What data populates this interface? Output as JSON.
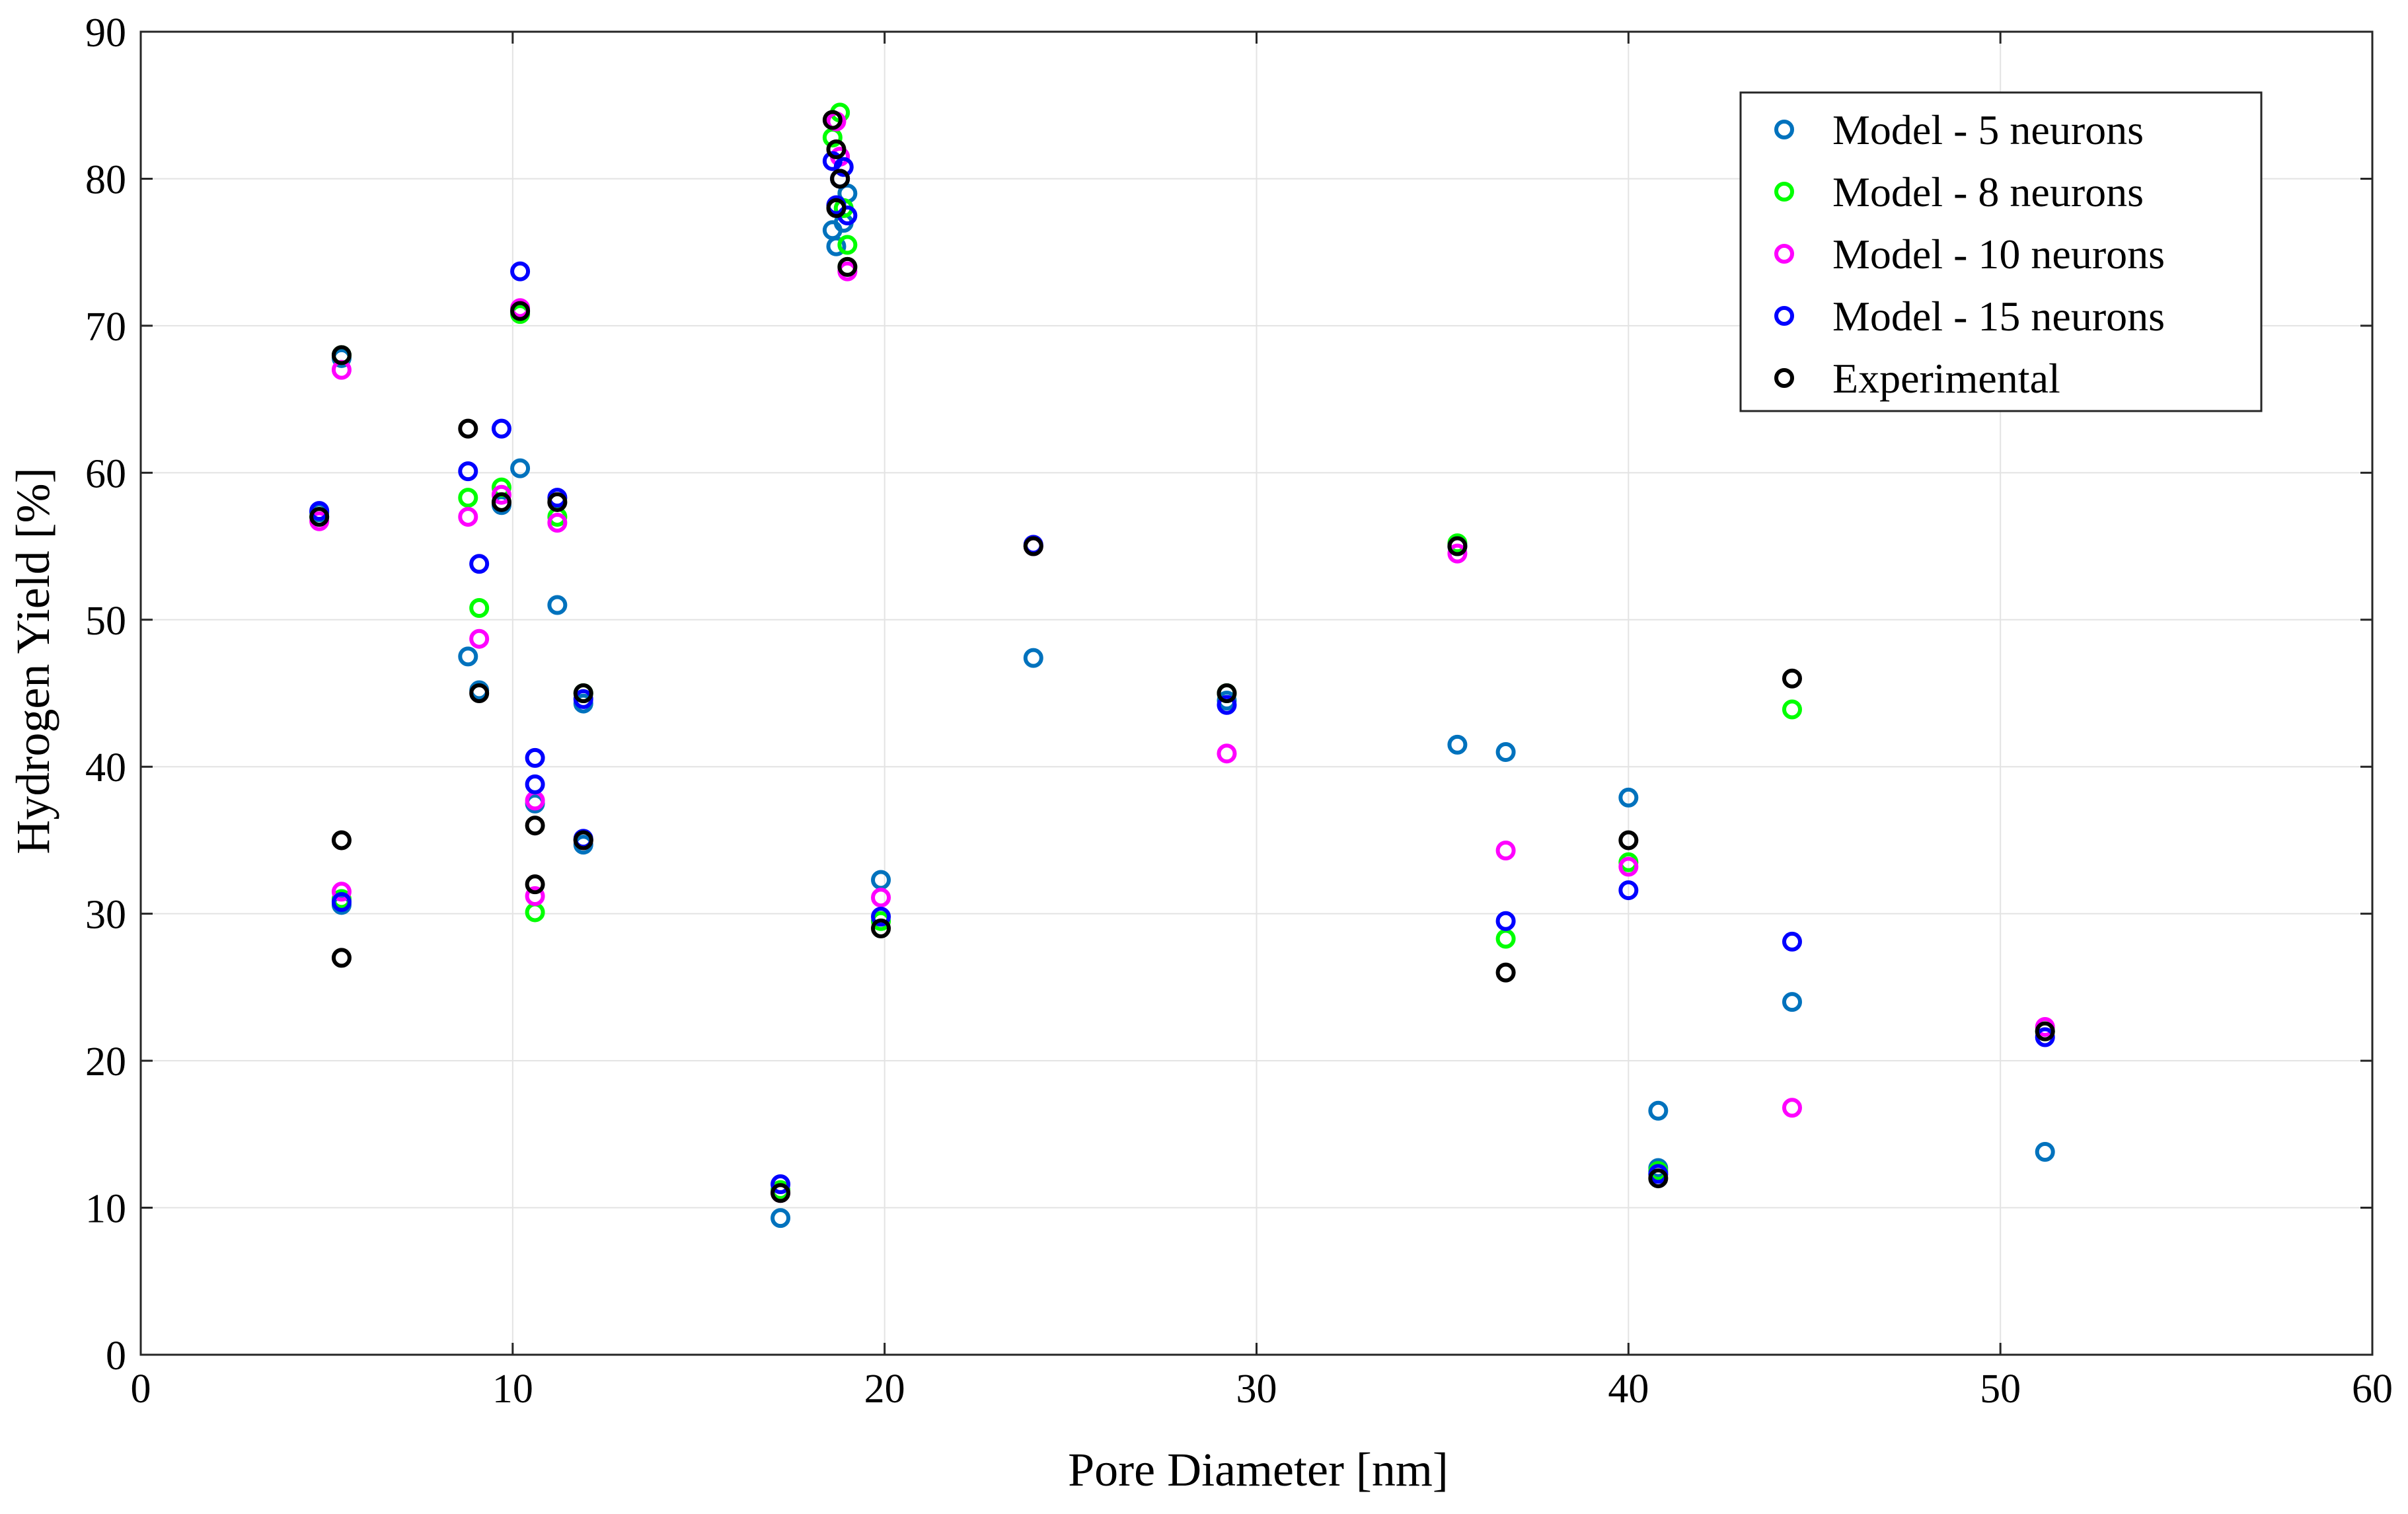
{
  "chart_data": {
    "type": "scatter",
    "title": "",
    "xlabel": "Pore Diameter [nm]",
    "ylabel": "Hydrogen Yield [%]",
    "xlim": [
      0,
      60
    ],
    "ylim": [
      0,
      90
    ],
    "xticks": [
      0,
      10,
      20,
      30,
      40,
      50,
      60
    ],
    "yticks": [
      0,
      10,
      20,
      30,
      40,
      50,
      60,
      70,
      80,
      90
    ],
    "xtick_labels": [
      "0",
      "10",
      "20",
      "30",
      "40",
      "50",
      "60"
    ],
    "ytick_labels": [
      "0",
      "10",
      "20",
      "30",
      "40",
      "50",
      "60",
      "70",
      "80",
      "90"
    ],
    "grid": true,
    "legend_position": "top-right",
    "marker": "open-circle",
    "series": [
      {
        "name": "Model - 5 neurons",
        "color": "#0072bd",
        "x": [
          4.8,
          5.4,
          5.4,
          8.8,
          9.1,
          9.7,
          10.2,
          10.2,
          10.6,
          11.2,
          11.9,
          11.9,
          17.2,
          18.6,
          18.7,
          18.8,
          18.9,
          19.0,
          19.9,
          24.0,
          29.2,
          35.4,
          36.7,
          40.0,
          40.8,
          40.8,
          44.4,
          51.2
        ],
        "y": [
          57.3,
          67.8,
          30.6,
          47.5,
          45.2,
          57.8,
          60.3,
          71.0,
          37.5,
          51.0,
          44.3,
          34.7,
          9.3,
          76.5,
          75.4,
          80.0,
          77.0,
          79.0,
          32.3,
          47.4,
          44.5,
          41.5,
          41.0,
          37.9,
          16.6,
          12.7,
          24.0,
          13.8
        ]
      },
      {
        "name": "Model - 8 neurons",
        "color": "#00ff00",
        "x": [
          4.8,
          5.4,
          5.4,
          8.8,
          9.1,
          9.7,
          10.2,
          10.6,
          11.2,
          11.9,
          11.9,
          17.2,
          18.6,
          18.8,
          18.9,
          19.0,
          19.0,
          19.9,
          24.0,
          29.2,
          35.4,
          36.7,
          40.0,
          40.8,
          44.4,
          51.2
        ],
        "y": [
          57.0,
          68.0,
          31.0,
          58.3,
          50.8,
          59.0,
          70.8,
          30.1,
          57.0,
          45.0,
          35.0,
          11.2,
          82.8,
          84.5,
          78.0,
          75.5,
          74.0,
          29.5,
          55.0,
          45.0,
          55.2,
          28.3,
          33.5,
          12.5,
          43.9,
          22.0
        ]
      },
      {
        "name": "Model - 10 neurons",
        "color": "#ff00ff",
        "x": [
          4.8,
          5.4,
          5.4,
          8.8,
          9.1,
          9.7,
          10.2,
          10.6,
          10.6,
          11.2,
          11.9,
          17.2,
          18.7,
          18.8,
          19.0,
          19.9,
          24.0,
          29.2,
          35.4,
          36.7,
          40.0,
          44.4,
          51.2
        ],
        "y": [
          56.7,
          67.0,
          31.5,
          57.0,
          48.7,
          58.5,
          71.2,
          37.7,
          31.2,
          56.6,
          35.0,
          11.0,
          83.9,
          81.5,
          73.7,
          31.1,
          55.0,
          40.9,
          54.5,
          34.3,
          33.2,
          16.8,
          22.3
        ]
      },
      {
        "name": "Model - 15 neurons",
        "color": "#0000ff",
        "x": [
          4.8,
          5.4,
          8.8,
          9.1,
          9.7,
          10.2,
          10.6,
          10.6,
          11.2,
          11.9,
          11.9,
          17.2,
          18.6,
          18.7,
          18.8,
          18.9,
          19.0,
          19.9,
          24.0,
          29.2,
          35.4,
          36.7,
          40.0,
          40.8,
          44.4,
          51.2
        ],
        "y": [
          57.4,
          30.8,
          60.1,
          53.8,
          63.0,
          73.7,
          40.6,
          38.8,
          58.3,
          44.6,
          35.1,
          11.6,
          81.2,
          78.2,
          80.0,
          80.8,
          77.5,
          29.8,
          55.1,
          44.2,
          55.0,
          29.5,
          31.6,
          12.3,
          28.1,
          21.6
        ]
      },
      {
        "name": "Experimental",
        "color": "#000000",
        "x": [
          4.8,
          5.4,
          5.4,
          5.4,
          8.8,
          9.1,
          9.7,
          10.2,
          10.6,
          10.6,
          11.2,
          11.9,
          11.9,
          17.2,
          18.6,
          18.7,
          18.8,
          18.7,
          19.0,
          19.9,
          24.0,
          29.2,
          35.4,
          36.7,
          40.0,
          40.8,
          44.4,
          51.2
        ],
        "y": [
          57.0,
          68.0,
          35.0,
          27.0,
          63.0,
          45.0,
          58.0,
          71.0,
          36.0,
          32.0,
          58.0,
          45.0,
          35.0,
          11.0,
          84.0,
          82.0,
          80.0,
          78.0,
          74.0,
          29.0,
          55.0,
          45.0,
          55.0,
          26.0,
          35.0,
          12.0,
          46.0,
          22.0
        ]
      }
    ]
  }
}
